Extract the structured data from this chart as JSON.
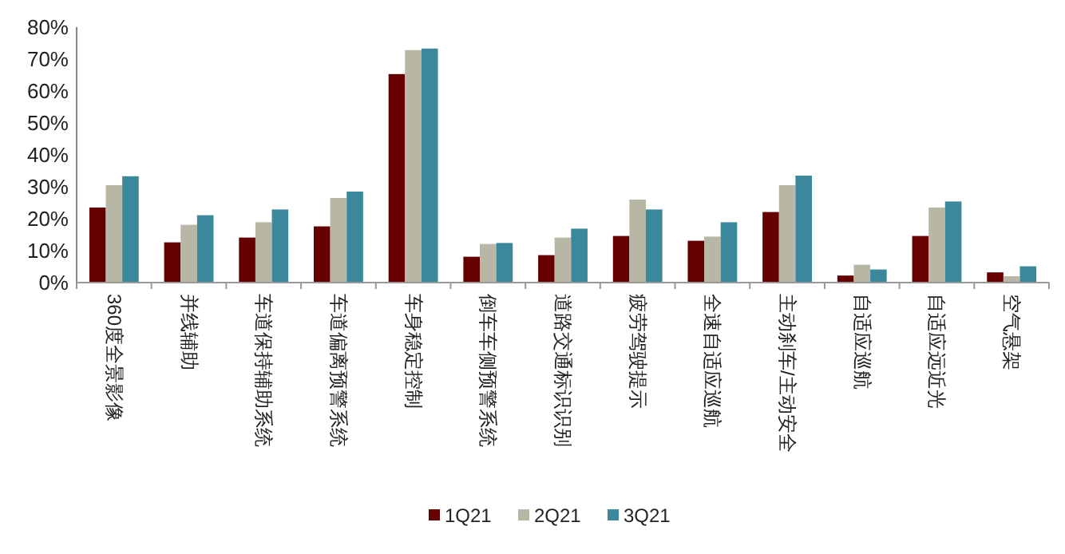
{
  "chart_data": {
    "type": "bar",
    "categories": [
      "360度全景影像",
      "并线辅助",
      "车道保持辅助系统",
      "车道偏离预警系统",
      "车身稳定控制",
      "倒车车侧预警系统",
      "道路交通标识识别",
      "疲劳驾驶提示",
      "全速自适应巡航",
      "主动刹车/主动安全",
      "自适应巡航",
      "自适应远近光",
      "空气悬架"
    ],
    "series": [
      {
        "name": "1Q21",
        "color": "#660000",
        "values": [
          23.5,
          12.6,
          14.1,
          17.6,
          65.3,
          8.1,
          8.6,
          14.6,
          13.1,
          22.1,
          2.2,
          14.6,
          3.2
        ]
      },
      {
        "name": "2Q21",
        "color": "#b8b7a5",
        "values": [
          30.5,
          18.1,
          18.9,
          26.5,
          72.8,
          12.1,
          14.1,
          26.0,
          14.4,
          30.5,
          5.6,
          23.5,
          2.0
        ]
      },
      {
        "name": "3Q21",
        "color": "#3b879c",
        "values": [
          33.3,
          21.1,
          22.9,
          28.5,
          73.3,
          12.4,
          16.9,
          22.9,
          18.9,
          33.5,
          4.1,
          25.4,
          5.1
        ]
      }
    ],
    "ylim": [
      0,
      80
    ],
    "yticks": [
      {
        "value": 0,
        "label": "0%"
      },
      {
        "value": 10,
        "label": "10%"
      },
      {
        "value": 20,
        "label": "20%"
      },
      {
        "value": 30,
        "label": "30%"
      },
      {
        "value": 40,
        "label": "40%"
      },
      {
        "value": 50,
        "label": "50%"
      },
      {
        "value": 60,
        "label": "60%"
      },
      {
        "value": 70,
        "label": "70%"
      },
      {
        "value": 80,
        "label": "80%"
      }
    ],
    "grid": false,
    "legend": "bottom"
  }
}
